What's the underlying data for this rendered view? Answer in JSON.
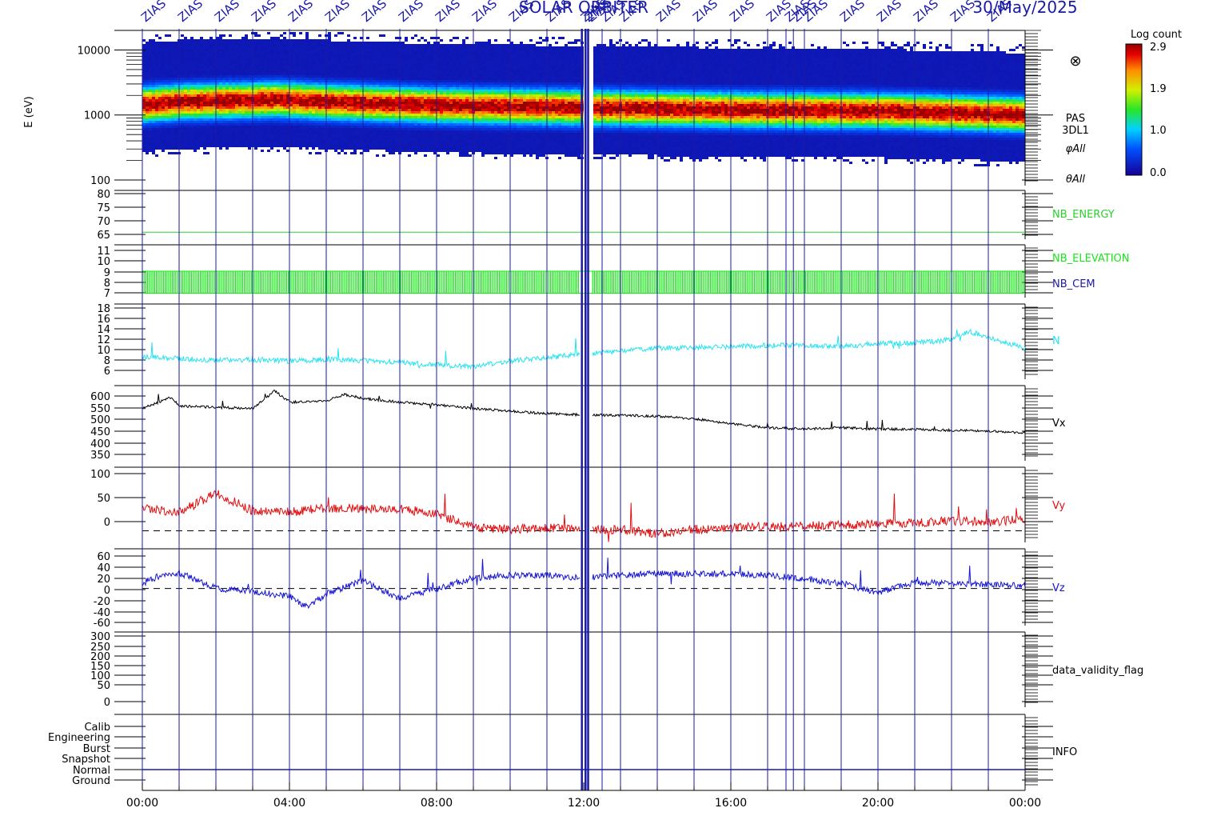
{
  "title": "SOLAR ORBITER",
  "date": "30/May/2025",
  "marker_text": "ZIAS",
  "marker_hours": [
    0.0,
    1.0,
    2.0,
    3.0,
    4.0,
    5.0,
    6.0,
    7.0,
    8.0,
    9.0,
    10.0,
    11.0,
    11.95,
    12.05,
    12.12,
    12.5,
    13.0,
    14.0,
    15.0,
    16.0,
    17.0,
    17.5,
    17.7,
    18.0,
    19.0,
    20.0,
    21.0,
    22.0,
    23.0
  ],
  "colorbar": {
    "title": "Log count",
    "ticks": [
      "2.9",
      "1.9",
      "1.0",
      "0.0"
    ]
  },
  "x_ticks": [
    "00:00",
    "04:00",
    "08:00",
    "12:00",
    "16:00",
    "20:00",
    "00:00"
  ],
  "panel_labels": {
    "spectrogram": [
      "PAS",
      "3DL1",
      "φAll",
      "θAll"
    ],
    "energy": "NB_ENERGY",
    "elevation": "NB_ELEVATION",
    "cem": "NB_CEM",
    "density": "N",
    "vx": "Vx",
    "vy": "Vy",
    "vz": "Vz",
    "validity": "data_validity_flag",
    "info": "INFO"
  },
  "colors": {
    "marker": "#1a1aa8",
    "energy": "#2cd02c",
    "elevation": "#19e619",
    "cem": "#1a1aa8",
    "density": "#27e3f0",
    "vx": "#000000",
    "vy": "#e01010",
    "vz": "#1414d2"
  },
  "chart_data": {
    "type": "line",
    "x_range_hours": [
      0,
      24
    ],
    "panels": [
      {
        "id": "spectrogram",
        "type": "heatmap",
        "ylabel": "E (eV)",
        "yscale": "log",
        "ylim": [
          100,
          20000
        ],
        "y_ticks": [
          "10000",
          "1000",
          "100"
        ],
        "peak_energy_eV": [
          [
            0,
            1500
          ],
          [
            1,
            1650
          ],
          [
            3.6,
            1800
          ],
          [
            5,
            1650
          ],
          [
            8,
            1450
          ],
          [
            12,
            1350
          ],
          [
            16,
            1250
          ],
          [
            20,
            1200
          ],
          [
            24,
            1050
          ]
        ],
        "log_count_range": [
          0.0,
          2.9
        ]
      },
      {
        "id": "energy",
        "y_ticks": [
          "80",
          "75",
          "70",
          "65"
        ],
        "ylim": [
          61,
          82
        ],
        "series": [
          {
            "name": "NB_ENERGY",
            "constant": 64
          }
        ]
      },
      {
        "id": "elevation",
        "y_ticks": [
          "11",
          "10",
          "9",
          "8",
          "7"
        ],
        "ylim": [
          6.6,
          11.4
        ],
        "series": [
          {
            "name": "NB_ELEVATION",
            "oscillates_between": [
              7,
              9
            ]
          }
        ]
      },
      {
        "id": "density",
        "y_ticks": [
          "18",
          "16",
          "14",
          "12",
          "10",
          "8",
          "6"
        ],
        "ylim": [
          4,
          18.5
        ],
        "series": [
          {
            "name": "N",
            "x": [
              0,
              1,
              2,
              3,
              4,
              5,
              6,
              7,
              8,
              9,
              10,
              11,
              12,
              13,
              14,
              15,
              16,
              17,
              18,
              19,
              20,
              21,
              22,
              22.5,
              23,
              24
            ],
            "values": [
              8.3,
              8.0,
              7.6,
              7.8,
              7.5,
              7.8,
              7.6,
              7.2,
              6.8,
              6.4,
              7.5,
              8.2,
              8.8,
              9.4,
              10.0,
              10.1,
              10.3,
              10.5,
              10.5,
              10.3,
              10.9,
              11.0,
              11.6,
              13.2,
              12.0,
              10.0
            ]
          }
        ]
      },
      {
        "id": "vx",
        "y_ticks": [
          "600",
          "550",
          "500",
          "450",
          "400",
          "350"
        ],
        "ylim": [
          325,
          620
        ],
        "series": [
          {
            "name": "Vx",
            "x": [
              0,
              0.8,
              1,
              2,
              3,
              3.6,
              4,
              5,
              5.5,
              6,
              7,
              8,
              9,
              10,
              11,
              12,
              13,
              14,
              15,
              16,
              17,
              18,
              19,
              20,
              21,
              22,
              23,
              24
            ],
            "values": [
              530,
              575,
              540,
              535,
              530,
              600,
              555,
              560,
              585,
              570,
              555,
              545,
              530,
              520,
              510,
              505,
              503,
              500,
              490,
              470,
              455,
              450,
              455,
              450,
              448,
              445,
              442,
              435
            ]
          }
        ]
      },
      {
        "id": "vy",
        "y_ticks": [
          "100",
          "50",
          "0"
        ],
        "ylim": [
          -20,
          110
        ],
        "zero_line": true,
        "series": [
          {
            "name": "Vy",
            "x": [
              0,
              1,
              2,
              3,
              4,
              5,
              6,
              7,
              8,
              9,
              10,
              11,
              12,
              13,
              14,
              15,
              16,
              17,
              18,
              19,
              20,
              21,
              22,
              23,
              24
            ],
            "values": [
              40,
              32,
              65,
              35,
              32,
              40,
              38,
              38,
              30,
              5,
              3,
              5,
              2,
              2,
              -5,
              2,
              5,
              8,
              8,
              10,
              12,
              14,
              18,
              15,
              20
            ]
          }
        ]
      },
      {
        "id": "vz",
        "y_ticks": [
          "60",
          "40",
          "20",
          "0",
          "-20",
          "-40",
          "-60"
        ],
        "ylim": [
          -70,
          75
        ],
        "zero_line": true,
        "series": [
          {
            "name": "Vz",
            "x": [
              0,
              0.5,
              1,
              2,
              3,
              4,
              4.5,
              5,
              6,
              7,
              8,
              9,
              10,
              11,
              12,
              13,
              14,
              15,
              16,
              17,
              18,
              19,
              20,
              21,
              22,
              23,
              24
            ],
            "values": [
              10,
              25,
              30,
              0,
              -5,
              -15,
              -35,
              -10,
              15,
              -20,
              0,
              20,
              25,
              25,
              20,
              25,
              28,
              28,
              28,
              25,
              18,
              10,
              -8,
              12,
              10,
              8,
              5
            ]
          }
        ]
      },
      {
        "id": "validity",
        "y_ticks": [
          "300",
          "250",
          "200",
          "150",
          "100",
          "50",
          "0"
        ],
        "ylim": [
          -20,
          320
        ]
      },
      {
        "id": "info",
        "y_ticks": [
          "Calib",
          "Engineering",
          "Burst",
          "Snapshot",
          "Normal",
          "Ground"
        ],
        "series": [
          {
            "name": "INFO",
            "level": "Normal"
          }
        ]
      }
    ]
  }
}
